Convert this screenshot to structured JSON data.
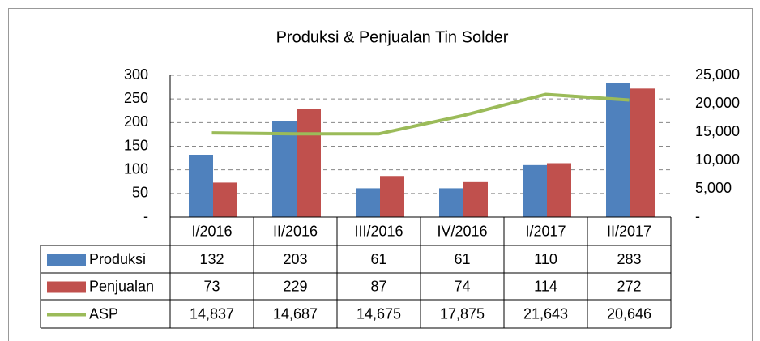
{
  "chart_data": {
    "type": "bar",
    "title": "Produksi & Penjualan Tin Solder",
    "categories": [
      "I/2016",
      "II/2016",
      "III/2016",
      "IV/2016",
      "I/2017",
      "II/2017"
    ],
    "series": [
      {
        "name": "Produksi",
        "color": "#4f81bd",
        "values": [
          132,
          203,
          61,
          61,
          110,
          283
        ]
      },
      {
        "name": "Penjualan",
        "color": "#c0504d",
        "values": [
          73,
          229,
          87,
          74,
          114,
          272
        ]
      },
      {
        "name": "ASP",
        "color": "#9bbb59",
        "type": "line",
        "axis": "y2",
        "values": [
          14837,
          14687,
          14675,
          17875,
          21643,
          20646
        ],
        "value_labels": [
          "14,837",
          "14,687",
          "14,675",
          "17,875",
          "21,643",
          "20,646"
        ]
      }
    ],
    "ylim": [
      0,
      300
    ],
    "yticks": [
      {
        "value": 0,
        "label": "-"
      },
      50,
      100,
      150,
      200,
      250,
      300
    ],
    "y2lim": [
      0,
      25000
    ],
    "y2ticks": [
      {
        "value": 0,
        "label": "-"
      },
      {
        "value": 5000,
        "label": "5,000"
      },
      {
        "value": 10000,
        "label": "10,000"
      },
      {
        "value": 15000,
        "label": "15,000"
      },
      {
        "value": 20000,
        "label": "20,000"
      },
      {
        "value": 25000,
        "label": "25,000"
      }
    ],
    "grid": true,
    "data_table": true
  }
}
